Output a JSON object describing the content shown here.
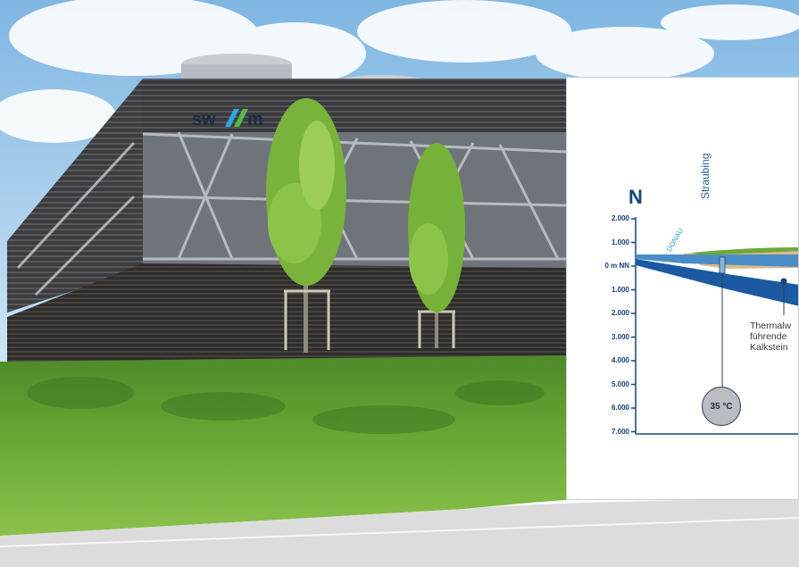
{
  "photo": {
    "building_logo": "swm",
    "colors": {
      "sky": "#a8d0ec",
      "facade": "#3b3b3e",
      "grass": "#5c9a30",
      "road": "#e6e6e6"
    }
  },
  "inset": {
    "compass_letter": "N",
    "town_label": "Straubing",
    "river_label": "DONAU",
    "depth_ticks": [
      "2.000",
      "1.000",
      "0 m NN",
      "1.000",
      "2.000",
      "3.000",
      "4.000",
      "5.000",
      "6.000",
      "7.000"
    ],
    "aquifer_lines": [
      "Thermalw",
      "führende",
      "Kalkstein"
    ],
    "temperature_label": "35 °C",
    "colors": {
      "accent": "#15467e",
      "water_layer": "#1b5aa3",
      "shallow_layer": "#4a8cc8",
      "sediment": "#d9b98e"
    }
  }
}
